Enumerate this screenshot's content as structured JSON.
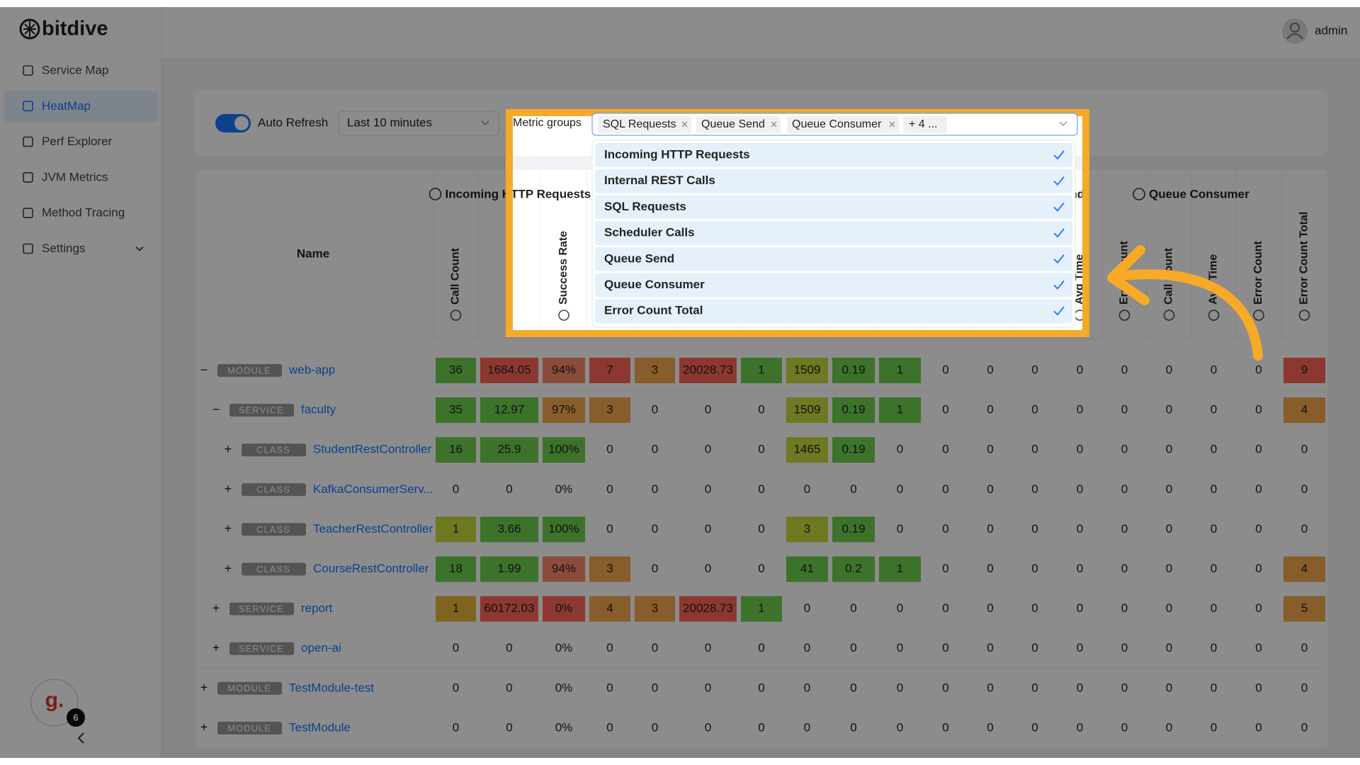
{
  "brand": "bitdive",
  "sidebar": {
    "nav": [
      {
        "label": "Service Map"
      },
      {
        "label": "HeatMap",
        "selected": true
      },
      {
        "label": "Perf Explorer"
      },
      {
        "label": "JVM Metrics"
      },
      {
        "label": "Method Tracing"
      },
      {
        "label": "Settings",
        "expandable": true
      }
    ],
    "avatar": {
      "letter": "g.",
      "badge": "6"
    }
  },
  "header": {
    "user": "admin"
  },
  "toolbar": {
    "auto_refresh": {
      "label": "Auto Refresh",
      "on": true
    },
    "range": "Last 10 minutes",
    "metric_groups": {
      "label": "Metric groups",
      "tags": [
        "SQL Requests",
        "Queue Send",
        "Queue Consumer"
      ],
      "more": "+ 4 ...",
      "options": [
        "Incoming HTTP Requests",
        "Internal REST Calls",
        "SQL Requests",
        "Scheduler Calls",
        "Queue Send",
        "Queue Consumer",
        "Error Count Total"
      ]
    }
  },
  "palette": {
    "green": "#6fcf4f",
    "yellowgreen": "#c9dc3c",
    "amber": "#e8b43a",
    "orange": "#f5a94f",
    "salmon": "#ff8a6e",
    "red": "#ff6658"
  },
  "table": {
    "name_header": "Name",
    "groups": [
      "Incoming HTTP Requests",
      "Queue Send",
      "Queue Consumer"
    ],
    "columns": [
      "Call Count",
      null,
      "Success Rate",
      null,
      null,
      null,
      null,
      null,
      null,
      null,
      null,
      null,
      null,
      "Avg Time",
      "Error Count",
      "Call Count",
      "Avg Time",
      "Error Count",
      "Error Count Total"
    ],
    "rows": [
      {
        "toggle": "−",
        "kind": "MODULE",
        "name": "web-app",
        "cells": [
          "36",
          "1684.05",
          "94%",
          "7",
          "3",
          "20028.73",
          "1",
          "1509",
          "0.19",
          "1",
          "0",
          "0",
          "0",
          "0",
          "0",
          "0",
          "0",
          "0",
          "9"
        ],
        "heat": [
          "green",
          "red",
          "salmon",
          "red",
          "orange",
          "red",
          "green",
          "yellowgreen",
          "green",
          "green",
          null,
          null,
          null,
          null,
          null,
          null,
          null,
          null,
          "red"
        ],
        "children": [
          {
            "toggle": "−",
            "kind": "SERVICE",
            "name": "faculty",
            "cells": [
              "35",
              "12.97",
              "97%",
              "3",
              "0",
              "0",
              "0",
              "1509",
              "0.19",
              "1",
              "0",
              "0",
              "0",
              "0",
              "0",
              "0",
              "0",
              "0",
              "4"
            ],
            "heat": [
              "green",
              "green",
              "orange",
              "orange",
              null,
              null,
              null,
              "yellowgreen",
              "green",
              "green",
              null,
              null,
              null,
              null,
              null,
              null,
              null,
              null,
              "orange"
            ],
            "children": [
              {
                "toggle": "+",
                "kind": "CLASS",
                "name": "StudentRestController",
                "cells": [
                  "16",
                  "25.9",
                  "100%",
                  "0",
                  "0",
                  "0",
                  "0",
                  "1465",
                  "0.19",
                  "0",
                  "0",
                  "0",
                  "0",
                  "0",
                  "0",
                  "0",
                  "0",
                  "0",
                  "0"
                ],
                "heat": [
                  "green",
                  "green",
                  "green",
                  null,
                  null,
                  null,
                  null,
                  "yellowgreen",
                  "green",
                  null,
                  null,
                  null,
                  null,
                  null,
                  null,
                  null,
                  null,
                  null,
                  null
                ]
              },
              {
                "toggle": "+",
                "kind": "CLASS",
                "name": "KafkaConsumerServ...",
                "cells": [
                  "0",
                  "0",
                  "0%",
                  "0",
                  "0",
                  "0",
                  "0",
                  "0",
                  "0",
                  "0",
                  "0",
                  "0",
                  "0",
                  "0",
                  "0",
                  "0",
                  "0",
                  "0",
                  "0"
                ]
              },
              {
                "toggle": "+",
                "kind": "CLASS",
                "name": "TeacherRestController",
                "cells": [
                  "1",
                  "3.66",
                  "100%",
                  "0",
                  "0",
                  "0",
                  "0",
                  "3",
                  "0.19",
                  "0",
                  "0",
                  "0",
                  "0",
                  "0",
                  "0",
                  "0",
                  "0",
                  "0",
                  "0"
                ],
                "heat": [
                  "yellowgreen",
                  "green",
                  "green",
                  null,
                  null,
                  null,
                  null,
                  "yellowgreen",
                  "green",
                  null,
                  null,
                  null,
                  null,
                  null,
                  null,
                  null,
                  null,
                  null,
                  null
                ]
              },
              {
                "toggle": "+",
                "kind": "CLASS",
                "name": "CourseRestController",
                "cells": [
                  "18",
                  "1.99",
                  "94%",
                  "3",
                  "0",
                  "0",
                  "0",
                  "41",
                  "0.2",
                  "1",
                  "0",
                  "0",
                  "0",
                  "0",
                  "0",
                  "0",
                  "0",
                  "0",
                  "4"
                ],
                "heat": [
                  "green",
                  "green",
                  "salmon",
                  "orange",
                  null,
                  null,
                  null,
                  "green",
                  "green",
                  "green",
                  null,
                  null,
                  null,
                  null,
                  null,
                  null,
                  null,
                  null,
                  "orange"
                ]
              }
            ]
          },
          {
            "toggle": "+",
            "kind": "SERVICE",
            "name": "report",
            "cells": [
              "1",
              "60172.03",
              "0%",
              "4",
              "3",
              "20028.73",
              "1",
              "0",
              "0",
              "0",
              "0",
              "0",
              "0",
              "0",
              "0",
              "0",
              "0",
              "0",
              "5"
            ],
            "heat": [
              "amber",
              "red",
              "red",
              "orange",
              "orange",
              "red",
              "green",
              null,
              null,
              null,
              null,
              null,
              null,
              null,
              null,
              null,
              null,
              null,
              "orange"
            ]
          },
          {
            "toggle": "+",
            "kind": "SERVICE",
            "name": "open-ai",
            "cells": [
              "0",
              "0",
              "0%",
              "0",
              "0",
              "0",
              "0",
              "0",
              "0",
              "0",
              "0",
              "0",
              "0",
              "0",
              "0",
              "0",
              "0",
              "0",
              "0"
            ]
          }
        ]
      },
      {
        "toggle": "+",
        "kind": "MODULE",
        "name": "TestModule-test",
        "cells": [
          "0",
          "0",
          "0%",
          "0",
          "0",
          "0",
          "0",
          "0",
          "0",
          "0",
          "0",
          "0",
          "0",
          "0",
          "0",
          "0",
          "0",
          "0",
          "0"
        ]
      },
      {
        "toggle": "+",
        "kind": "MODULE",
        "name": "TestModule",
        "cells": [
          "0",
          "0",
          "0%",
          "0",
          "0",
          "0",
          "0",
          "0",
          "0",
          "0",
          "0",
          "0",
          "0",
          "0",
          "0",
          "0",
          "0",
          "0",
          "0"
        ]
      }
    ]
  }
}
